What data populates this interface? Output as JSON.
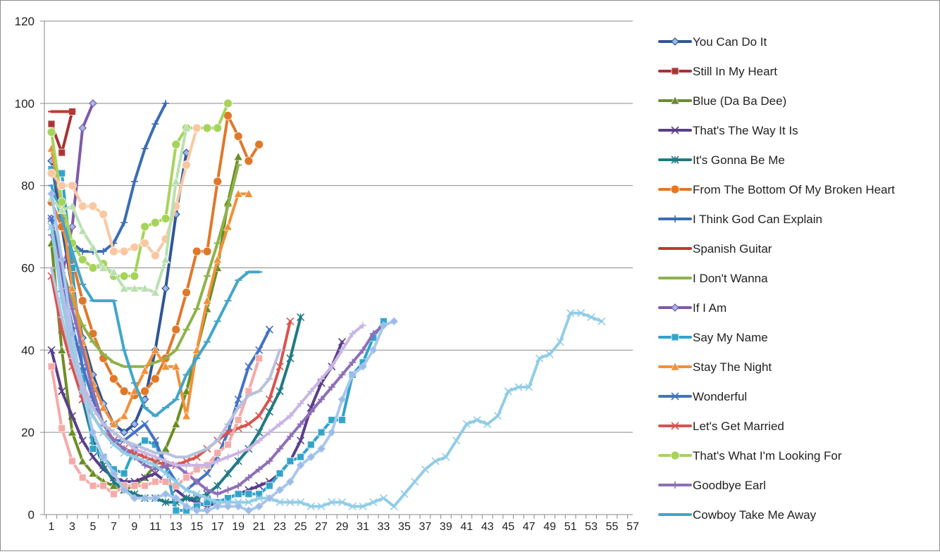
{
  "chart_data": {
    "type": "line",
    "title": "",
    "xlabel": "",
    "ylabel": "",
    "xlim": [
      1,
      57
    ],
    "ylim": [
      0,
      120
    ],
    "y_ticks": [
      "0",
      "20",
      "40",
      "60",
      "80",
      "100",
      "120"
    ],
    "x_ticks": [
      "1",
      "3",
      "5",
      "7",
      "9",
      "11",
      "13",
      "15",
      "17",
      "19",
      "21",
      "23",
      "25",
      "27",
      "29",
      "31",
      "33",
      "35",
      "37",
      "39",
      "41",
      "43",
      "45",
      "47",
      "49",
      "51",
      "53",
      "55",
      "57"
    ],
    "grid": "horizontal",
    "legend_position": "right",
    "series": [
      {
        "name": "You Can Do It",
        "color": "#2f5597",
        "marker": "diamond",
        "values": [
          86,
          70,
          55,
          43,
          34,
          27,
          22,
          20,
          22,
          28,
          40,
          55,
          73,
          88
        ]
      },
      {
        "name": "Still In My Heart",
        "color": "#a83232",
        "marker": "square",
        "values": [
          95,
          88,
          98
        ]
      },
      {
        "name": "Blue (Da Ba Dee)",
        "color": "#6b8e23",
        "marker": "triangle",
        "values": [
          66,
          40,
          20,
          13,
          10,
          8,
          7,
          6,
          7,
          9,
          12,
          16,
          22,
          30,
          40,
          50,
          60,
          76,
          87
        ]
      },
      {
        "name": "That's The Way It Is",
        "color": "#5a3e8a",
        "marker": "x",
        "values": [
          40,
          30,
          24,
          18,
          14,
          11,
          9,
          8,
          8,
          9,
          10,
          8,
          6,
          4,
          3,
          2,
          3,
          4,
          5,
          6,
          7,
          8,
          10,
          13,
          18,
          26,
          32,
          36,
          42
        ]
      },
      {
        "name": "It's Gonna Be Me",
        "color": "#207a85",
        "marker": "star",
        "values": [
          70,
          55,
          40,
          28,
          18,
          12,
          8,
          6,
          5,
          4,
          4,
          3,
          3,
          4,
          4,
          5,
          7,
          10,
          13,
          16,
          20,
          25,
          30,
          38,
          48
        ]
      },
      {
        "name": "From The Bottom Of My Broken Heart",
        "color": "#e0782a",
        "marker": "circle",
        "values": [
          76,
          70,
          62,
          52,
          44,
          38,
          33,
          30,
          29,
          30,
          33,
          38,
          45,
          54,
          64,
          64,
          81,
          97,
          92,
          86,
          90
        ]
      },
      {
        "name": "I Think God Can Explain",
        "color": "#3b6db3",
        "marker": "plus",
        "values": [
          84,
          76,
          66,
          64,
          64,
          64,
          66,
          71,
          81,
          89,
          95,
          100
        ]
      },
      {
        "name": "Spanish Guitar",
        "color": "#c0392b",
        "marker": "dash",
        "values": [
          98,
          98,
          98
        ]
      },
      {
        "name": "I Don't Wanna",
        "color": "#8fb24c",
        "marker": "dash",
        "values": [
          72,
          60,
          52,
          46,
          42,
          39,
          37,
          36,
          36,
          36,
          37,
          38,
          40,
          45,
          50,
          58,
          66,
          75,
          85
        ]
      },
      {
        "name": "If I Am",
        "color": "#7e5aa8",
        "marker": "diamond",
        "values": [
          72,
          58,
          70,
          94,
          100
        ]
      },
      {
        "name": "Say My Name",
        "color": "#2fa3c9",
        "marker": "square",
        "values": [
          84,
          83,
          60,
          35,
          16,
          14,
          11,
          10,
          16,
          18,
          17,
          12,
          1,
          1,
          2,
          3,
          3,
          4,
          5,
          5,
          5,
          7,
          10,
          13,
          14,
          17,
          20,
          23,
          23,
          34,
          37,
          43,
          47
        ]
      },
      {
        "name": "Stay The Night",
        "color": "#f0913a",
        "marker": "triangle",
        "values": [
          89,
          75,
          55,
          42,
          32,
          26,
          22,
          24,
          30,
          35,
          40,
          36,
          36,
          24,
          40,
          52,
          62,
          70,
          78,
          78
        ]
      },
      {
        "name": "Wonderful",
        "color": "#4472c4",
        "marker": "x",
        "values": [
          72,
          58,
          46,
          36,
          28,
          22,
          18,
          18,
          20,
          22,
          18,
          12,
          8,
          6,
          8,
          10,
          14,
          20,
          28,
          36,
          40,
          45
        ]
      },
      {
        "name": "Let's Get Married",
        "color": "#d9534f",
        "marker": "x",
        "values": [
          58,
          45,
          36,
          28,
          24,
          20,
          18,
          16,
          15,
          14,
          13,
          12,
          12,
          13,
          14,
          16,
          18,
          20,
          21,
          22,
          24,
          28,
          36,
          47
        ]
      },
      {
        "name": "That's What I'm Looking For",
        "color": "#a6d45a",
        "marker": "circle",
        "values": [
          93,
          76,
          66,
          62,
          60,
          61,
          58,
          58,
          58,
          70,
          71,
          72,
          90,
          94,
          94,
          94,
          94,
          100
        ]
      },
      {
        "name": "Goodbye Earl",
        "color": "#8e6fb8",
        "marker": "plus",
        "values": [
          68,
          60,
          50,
          40,
          30,
          22,
          18,
          16,
          14,
          12,
          11,
          12,
          12,
          10,
          8,
          6,
          5,
          6,
          7,
          9,
          11,
          13,
          16,
          19,
          22,
          25,
          28,
          31,
          34,
          37,
          40,
          44,
          46
        ]
      },
      {
        "name": "Cowboy Take Me Away",
        "color": "#43a6c8",
        "marker": "dash",
        "values": [
          80,
          72,
          64,
          56,
          52,
          52,
          52,
          40,
          32,
          26,
          24,
          26,
          28,
          34,
          38,
          42,
          47,
          52,
          57,
          59,
          59
        ]
      },
      {
        "name": "",
        "color": "#f6a9a7",
        "marker": "square",
        "values": [
          36,
          21,
          13,
          9,
          7,
          7,
          5,
          7,
          7,
          7,
          8,
          8,
          7,
          9,
          11,
          12,
          15,
          17,
          23,
          30,
          38
        ]
      },
      {
        "name": "",
        "color": "#f9c8a3",
        "marker": "circle",
        "values": [
          83,
          80,
          80,
          75,
          75,
          73,
          64,
          64,
          65,
          66,
          63,
          67,
          75,
          85,
          94
        ]
      },
      {
        "name": "",
        "color": "#b9e0b0",
        "marker": "triangle",
        "values": [
          77,
          74,
          75,
          69,
          65,
          60,
          59,
          55,
          55,
          55,
          54,
          62,
          81,
          94
        ]
      },
      {
        "name": "",
        "color": "#c9b6e3",
        "marker": "plus",
        "values": [
          70,
          55,
          42,
          32,
          26,
          22,
          20,
          18,
          16,
          15,
          14,
          13,
          12,
          12,
          12,
          12,
          13,
          14,
          15,
          16,
          18,
          20,
          22,
          24,
          27,
          30,
          33,
          36,
          40,
          44,
          46
        ]
      },
      {
        "name": "",
        "color": "#92cde6",
        "marker": "x",
        "values": [
          70,
          52,
          40,
          30,
          24,
          20,
          17,
          15,
          14,
          13,
          12,
          10,
          8,
          6,
          5,
          4,
          3,
          3,
          3,
          3,
          4,
          4,
          3,
          3,
          3,
          2,
          2,
          3,
          3,
          2,
          2,
          3,
          4,
          2,
          5,
          8,
          11,
          13,
          14,
          18,
          22,
          23,
          22,
          24,
          30,
          31,
          31,
          38,
          39,
          42,
          49,
          49,
          48,
          47
        ]
      },
      {
        "name": "",
        "color": "#a8c8ec",
        "marker": "diamond",
        "values": [
          78,
          62,
          44,
          30,
          20,
          14,
          10,
          6,
          4,
          4,
          4,
          5,
          4,
          2,
          1,
          1,
          2,
          2,
          2,
          1,
          2,
          4,
          6,
          8,
          12,
          14,
          16,
          20,
          28,
          34,
          36,
          40,
          46,
          47
        ]
      },
      {
        "name": "",
        "color": "#b8c0dc",
        "marker": "dash",
        "values": [
          60,
          48,
          38,
          30,
          26,
          22,
          20,
          18,
          17,
          16,
          15,
          15,
          14,
          14,
          15,
          16,
          18,
          22,
          26,
          29,
          30,
          33,
          40
        ]
      }
    ]
  },
  "legend": {
    "items": [
      "You Can Do It",
      "Still In My Heart",
      "Blue (Da Ba Dee)",
      "That's The Way It Is",
      "It's Gonna Be Me",
      "From The Bottom Of My Broken Heart",
      "I Think God Can Explain",
      "Spanish Guitar",
      "I Don't Wanna",
      "If I Am",
      "Say My Name",
      "Stay The Night",
      "Wonderful",
      "Let's Get Married",
      "That's What I'm Looking For",
      "Goodbye Earl",
      "Cowboy Take Me Away"
    ]
  }
}
